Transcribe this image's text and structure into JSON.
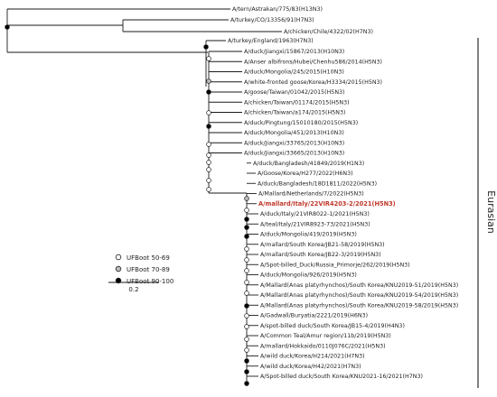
{
  "taxa": [
    {
      "label": "A/tern/Astrakan/775/83(H13N3)",
      "highlight": false
    },
    {
      "label": "A/turkey/CO/13356/91(H7N3)",
      "highlight": false
    },
    {
      "label": "A/chicken/Chile/4322/02(H7N3)",
      "highlight": false
    },
    {
      "label": "A/turkey/England/1963(H7N3)",
      "highlight": false
    },
    {
      "label": "A/duck/Jiangxi/15867/2013(H10N3)",
      "highlight": false
    },
    {
      "label": "A/Anser albifrons/Hubei/Chenhu586/2014(H5N3)",
      "highlight": false
    },
    {
      "label": "A/duck/Mongolia/245/2015(H10N3)",
      "highlight": false
    },
    {
      "label": "A/white-fronted goose/Korea/H3334/2015(H5N3)",
      "highlight": false
    },
    {
      "label": "A/goose/Taiwan/01042/2015(H5N3)",
      "highlight": false
    },
    {
      "label": "A/chicken/Taiwan/01174/2015(H5N3)",
      "highlight": false
    },
    {
      "label": "A/chicken/Taiwan/a174/2015(H5N3)",
      "highlight": false
    },
    {
      "label": "A/duck/Pingtung/15010180/2015(H5N3)",
      "highlight": false
    },
    {
      "label": "A/duck/Mongolia/451/2013(H10N3)",
      "highlight": false
    },
    {
      "label": "A/duck/Jiangxi/33765/2013(H10N3)",
      "highlight": false
    },
    {
      "label": "A/duck/Jiangxi/33665/2013(H10N3)",
      "highlight": false
    },
    {
      "label": "A/duck/Bangladesh/41849/2019(H1N3)",
      "highlight": false
    },
    {
      "label": "A/Goose/Korea/H277/2022(H6N3)",
      "highlight": false
    },
    {
      "label": "A/duck/Bangladesh/18D1811/2022(H5N3)",
      "highlight": false
    },
    {
      "label": "A/Mallard/Netherlands/7/2022(H5N3)",
      "highlight": false
    },
    {
      "label": "A/mallard/Italy/22VIR4203-2/2021(H5N3)",
      "highlight": true
    },
    {
      "label": "A/duck/Italy/21VIR8022-1/2021(H5N3)",
      "highlight": false
    },
    {
      "label": "A/teal/Italy/21VIR8923-73/2021(H5N3)",
      "highlight": false
    },
    {
      "label": "A/duck/Mongolia/419/2019(H5N3)",
      "highlight": false
    },
    {
      "label": "A/mallard/South Korea/JB21-58/2019(H5N3)",
      "highlight": false
    },
    {
      "label": "A/mallard/South Korea/JB22-3/2019(H5N3)",
      "highlight": false
    },
    {
      "label": "A/Spot-billed_Duck/Russia_Primorje/262/2019(H5N3)",
      "highlight": false
    },
    {
      "label": "A/duck/Mongolia/926/2019(H5N3)",
      "highlight": false
    },
    {
      "label": "A/Mallard(Anas platyrhynchos)/South Korea/KNU2019-51/2019(H5N3)",
      "highlight": false
    },
    {
      "label": "A/Mallard(Anas platyrhynchos)/South Korea/KNU2019-54/2019(H5N3)",
      "highlight": false
    },
    {
      "label": "A/Mallard(Anas platyrhynchos)/South Korea/KNU2019-58/2019(H5N3)",
      "highlight": false
    },
    {
      "label": "A/Gadwall/Buryatia/2221/2019(H6N3)",
      "highlight": false
    },
    {
      "label": "A/spot-billed duck/South Korea/JB15-4/2019(H4N3)",
      "highlight": false
    },
    {
      "label": "A/Common Teal/Amur region/11b/2019(H5N3)",
      "highlight": false
    },
    {
      "label": "A/mallard/Hokkaido/0110J076C/2021(H5N3)",
      "highlight": false
    },
    {
      "label": "A/wild duck/Korea/H214/2021(H7N3)",
      "highlight": false
    },
    {
      "label": "A/wild duck/Korea/H42/2021(H7N3)",
      "highlight": false
    },
    {
      "label": "A/Spot-billed duck/South Korea/KNU2021-16/2021(H7N3)",
      "highlight": false
    }
  ],
  "legend": [
    {
      "label": "UFBoot 50-69",
      "fill": "#ffffff"
    },
    {
      "label": "UFBoot 70-89",
      "fill": "#bbbbbb"
    },
    {
      "label": "UFBoot 90-100",
      "fill": "#000000"
    }
  ],
  "scale_label": "0.2",
  "clade_label": "Eurasian",
  "colors": {
    "branch": "#1a1a1a",
    "highlight": "#c0392b",
    "bracket": "#000000"
  }
}
